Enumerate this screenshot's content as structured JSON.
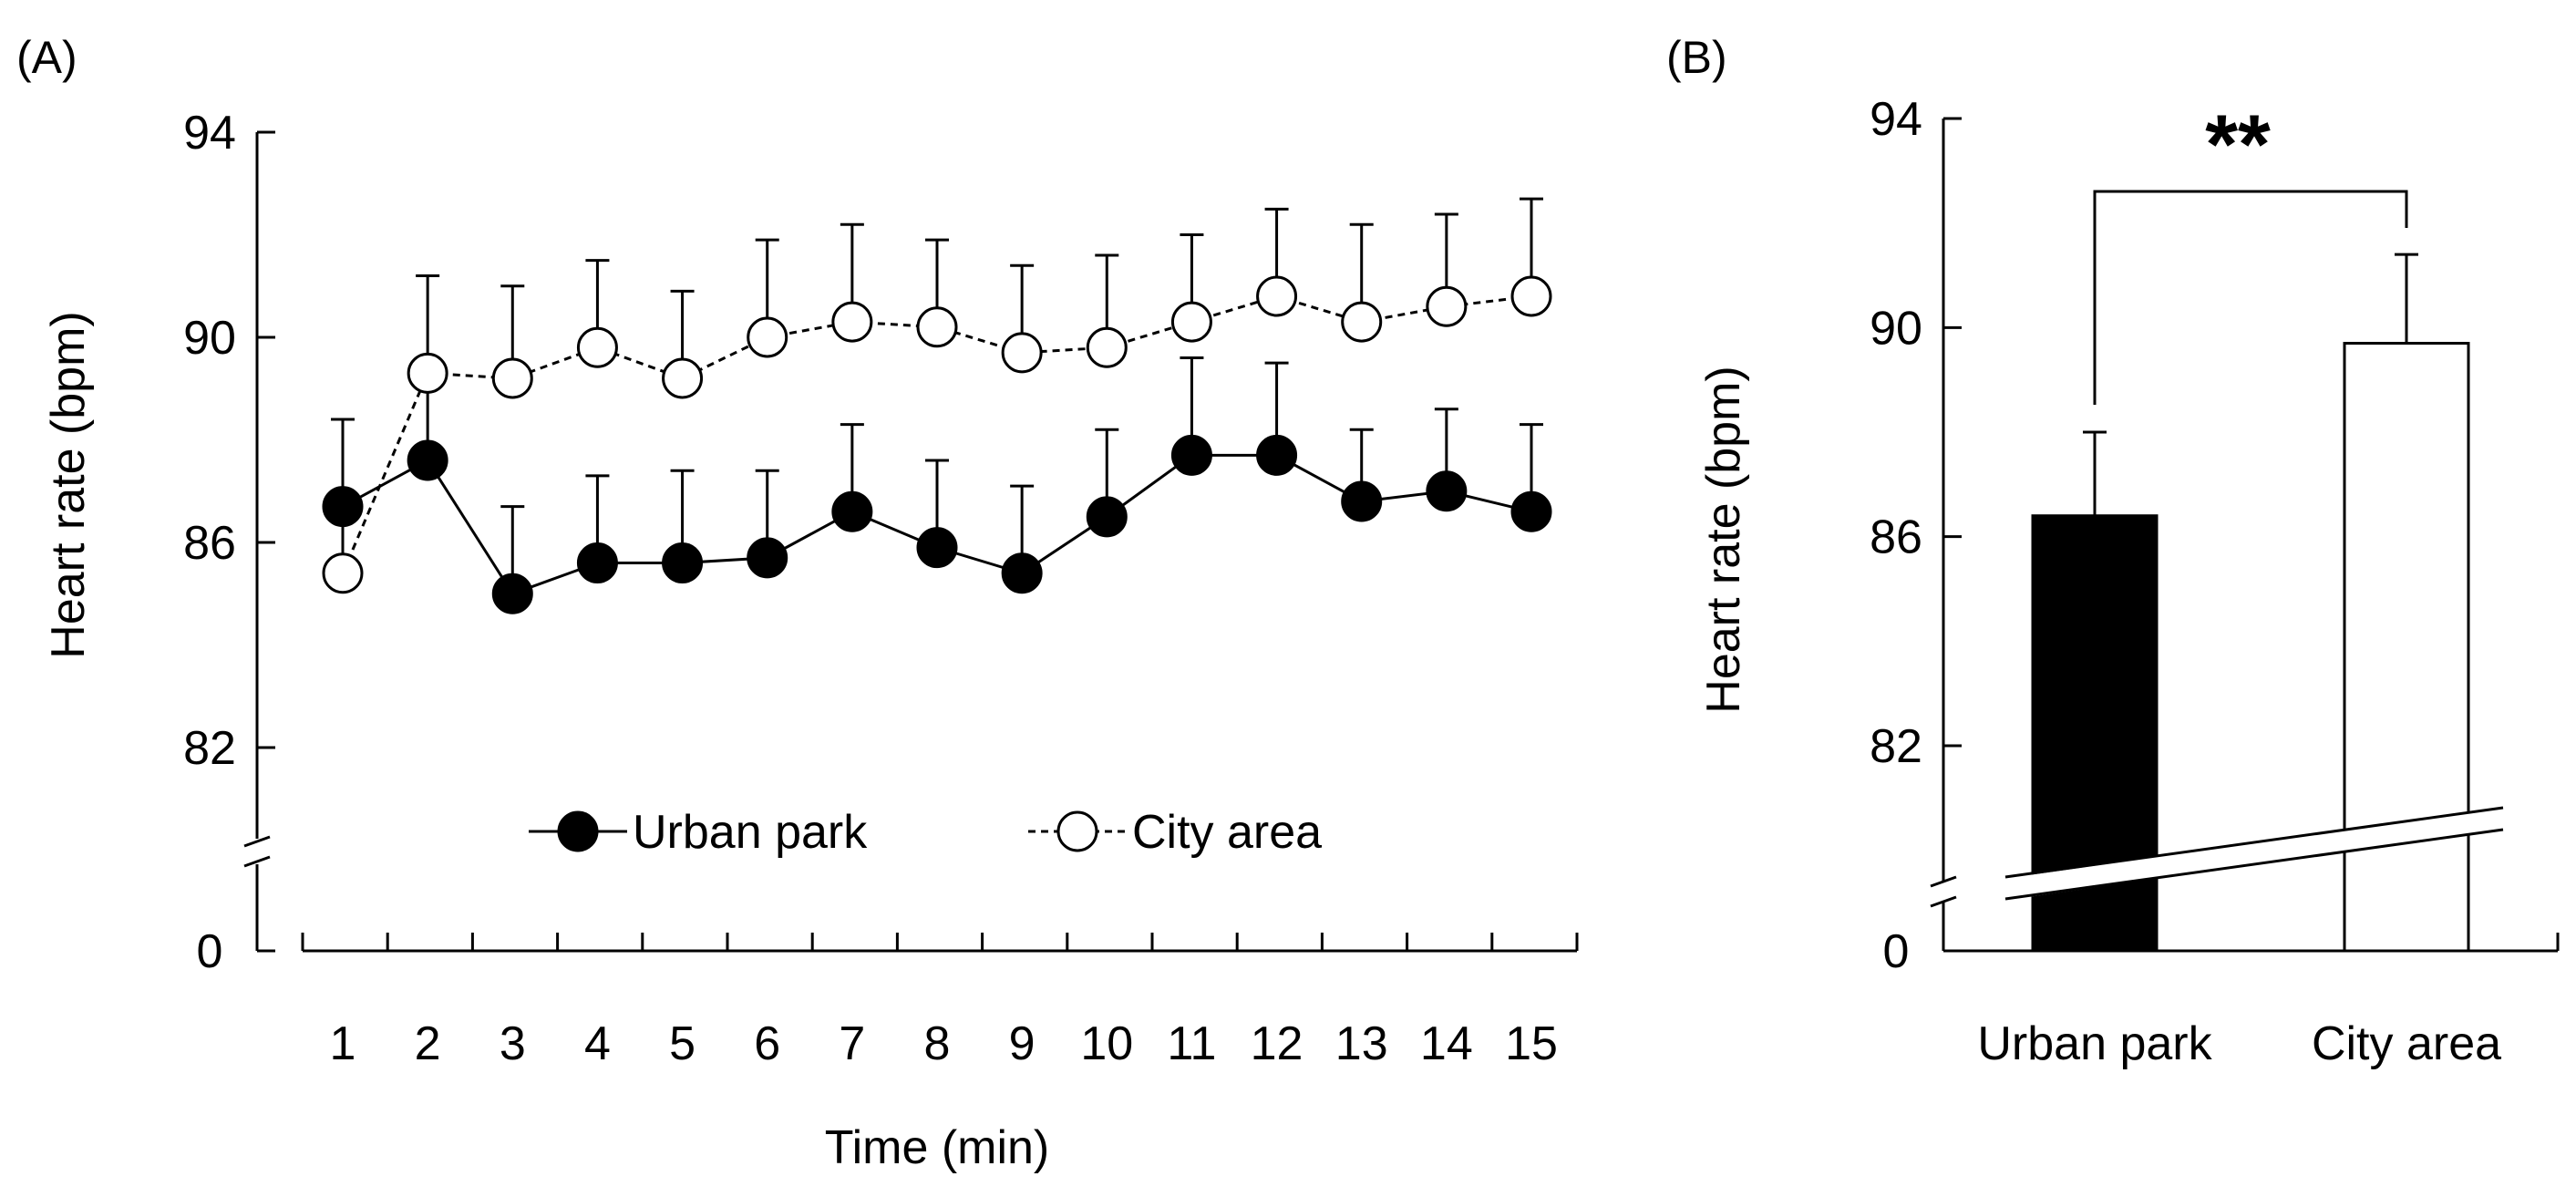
{
  "chart_data": [
    {
      "type": "line",
      "panel_label": "(A)",
      "title": "",
      "xlabel": "Time (min)",
      "ylabel": "Heart rate (bpm)",
      "x": [
        1,
        2,
        3,
        4,
        5,
        6,
        7,
        8,
        9,
        10,
        11,
        12,
        13,
        14,
        15
      ],
      "x_tick_labels": [
        "1",
        "2",
        "3",
        "4",
        "5",
        "6",
        "7",
        "8",
        "9",
        "10",
        "11",
        "12",
        "13",
        "14",
        "15"
      ],
      "y_ticks": [
        82,
        86,
        90,
        94
      ],
      "y_tick_labels": [
        "82",
        "86",
        "90",
        "94"
      ],
      "y_break_label": "0",
      "ylim": [
        80,
        94
      ],
      "axis_break": true,
      "grid": false,
      "legend_position": "bottom-center",
      "series": [
        {
          "name": "Urban park",
          "marker": "filled-circle",
          "line": "solid",
          "values": [
            86.7,
            87.6,
            85.0,
            85.6,
            85.6,
            85.7,
            86.6,
            85.9,
            85.4,
            86.5,
            87.7,
            87.7,
            86.8,
            87.0,
            86.6
          ],
          "error": [
            1.7,
            1.7,
            1.7,
            1.7,
            1.8,
            1.7,
            1.7,
            1.7,
            1.7,
            1.7,
            1.9,
            1.8,
            1.4,
            1.6,
            1.7
          ]
        },
        {
          "name": "City area",
          "marker": "open-circle",
          "line": "dashed",
          "values": [
            85.4,
            89.3,
            89.2,
            89.8,
            89.2,
            90.0,
            90.3,
            90.2,
            89.7,
            89.8,
            90.3,
            90.8,
            90.3,
            90.6,
            90.8
          ],
          "error": [
            1.6,
            1.9,
            1.8,
            1.7,
            1.7,
            1.9,
            1.9,
            1.7,
            1.7,
            1.8,
            1.7,
            1.7,
            1.9,
            1.8,
            1.9
          ]
        }
      ]
    },
    {
      "type": "bar",
      "panel_label": "(B)",
      "title": "",
      "xlabel": "",
      "ylabel": "Heart rate (bpm)",
      "categories": [
        "Urban park",
        "City area"
      ],
      "values": [
        86.4,
        89.7
      ],
      "error": [
        1.6,
        1.7
      ],
      "colors": [
        "#000000",
        "#ffffff"
      ],
      "y_ticks": [
        82,
        86,
        90,
        94
      ],
      "y_tick_labels": [
        "82",
        "86",
        "90",
        "94"
      ],
      "y_break_label": "0",
      "ylim": [
        80,
        94
      ],
      "axis_break": true,
      "grid": false,
      "significance": "**"
    }
  ]
}
